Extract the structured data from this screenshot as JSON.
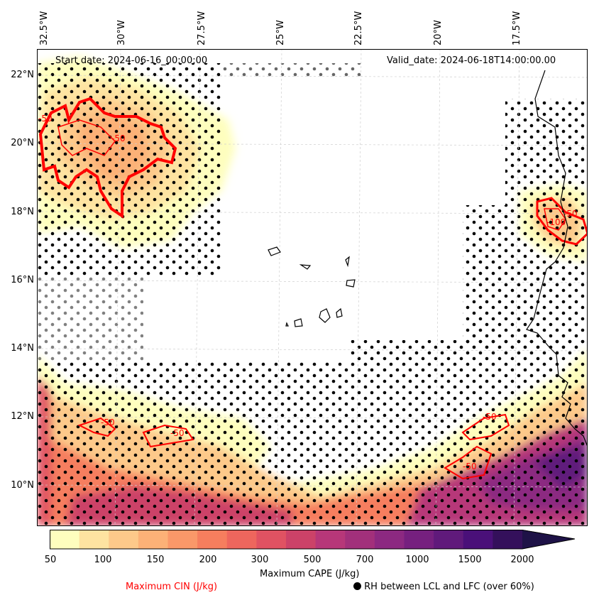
{
  "header": {
    "start_date": "Start date: 2024-06-16_00:00:00",
    "valid_date": "Valid_date: 2024-06-18T14:00:00.00"
  },
  "axes": {
    "longitude_labels": [
      "32.5°W",
      "30°W",
      "27.5°W",
      "25°W",
      "22.5°W",
      "20°W",
      "17.5°W"
    ],
    "latitude_labels": [
      "22°N",
      "20°N",
      "18°N",
      "16°N",
      "14°N",
      "12°N",
      "10°N"
    ]
  },
  "colorbar": {
    "label": "Maximum CAPE (J/kg)",
    "ticks": [
      "50",
      "100",
      "150",
      "200",
      "300",
      "500",
      "700",
      "1000",
      "1500",
      "2000"
    ],
    "colors": [
      "#fefebe",
      "#fee3a1",
      "#fdc98a",
      "#fcb177",
      "#fa9869",
      "#f67e5e",
      "#ee665d",
      "#e05262",
      "#cc4268",
      "#b73779",
      "#a2307b",
      "#8c2981",
      "#76207f",
      "#601a7b",
      "#4a1079",
      "#34105b",
      "#1e1247"
    ]
  },
  "legend": {
    "cin_label": "Maximum CIN (J/kg)",
    "rh_label": "RH between LCL and LFC (over 60%)",
    "cin_color": "#ff0000"
  },
  "map": {
    "contour_labels": [
      "-50",
      "-50",
      "-50",
      "-50",
      "-50",
      "-50",
      "-100",
      "-50"
    ]
  }
}
